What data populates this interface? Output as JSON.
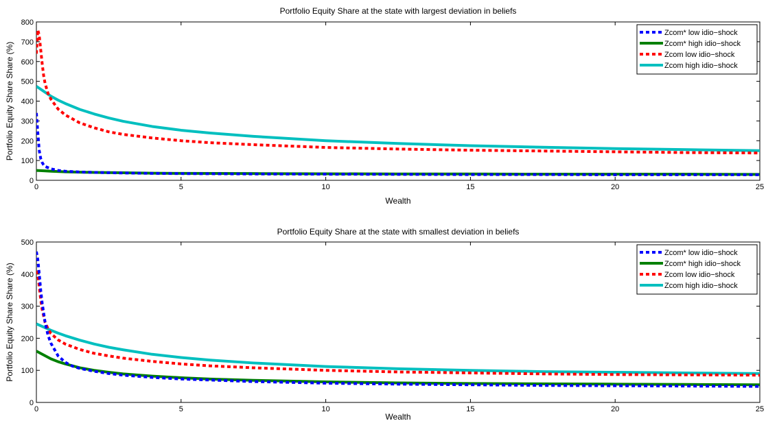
{
  "chart_data": [
    {
      "type": "line",
      "title": "Portfolio Equity Share at the state with largest deviation in beliefs",
      "xlabel": "Wealth",
      "ylabel": "Portfolio Equity Share Share (%)",
      "xlim": [
        0,
        25
      ],
      "ylim": [
        0,
        800
      ],
      "xticks": [
        0,
        5,
        10,
        15,
        20,
        25
      ],
      "yticks": [
        0,
        100,
        200,
        300,
        400,
        500,
        600,
        700,
        800
      ],
      "grid": false,
      "legend_position": "top-right",
      "series": [
        {
          "name": "Zcom* low idio−shock",
          "color": "#0000ff",
          "style": "dotted",
          "x": [
            0.0,
            0.05,
            0.1,
            0.15,
            0.2,
            0.25,
            0.3,
            0.5,
            0.75,
            1,
            1.5,
            2,
            3,
            4,
            5,
            7.5,
            10,
            12.5,
            15,
            17.5,
            20,
            22.5,
            25
          ],
          "y": [
            340,
            240,
            150,
            110,
            90,
            78,
            70,
            58,
            50,
            46,
            42,
            40,
            37,
            35,
            34,
            32,
            31,
            30,
            29,
            29,
            28,
            28,
            28
          ]
        },
        {
          "name": "Zcom* high idio−shock",
          "color": "#008000",
          "style": "solid",
          "x": [
            0.0,
            0.25,
            0.5,
            1,
            1.5,
            2,
            3,
            4,
            5,
            7.5,
            10,
            12.5,
            15,
            17.5,
            20,
            22.5,
            25
          ],
          "y": [
            50,
            48,
            46,
            43,
            41,
            40,
            38,
            36,
            35,
            34,
            33,
            32,
            32,
            31,
            31,
            31,
            30
          ]
        },
        {
          "name": "Zcom low idio−shock",
          "color": "#ff0000",
          "style": "dotted",
          "x": [
            0.0,
            0.05,
            0.1,
            0.15,
            0.2,
            0.25,
            0.3,
            0.4,
            0.5,
            0.75,
            1,
            1.5,
            2,
            2.5,
            3,
            4,
            5,
            6,
            7.5,
            10,
            12.5,
            15,
            17.5,
            20,
            22.5,
            25
          ],
          "y": [
            640,
            760,
            730,
            660,
            590,
            530,
            490,
            440,
            410,
            360,
            330,
            290,
            265,
            245,
            232,
            214,
            200,
            190,
            180,
            166,
            158,
            152,
            148,
            144,
            140,
            138
          ]
        },
        {
          "name": "Zcom high idio−shock",
          "color": "#00bfbf",
          "style": "solid",
          "x": [
            0.0,
            0.25,
            0.5,
            0.75,
            1,
            1.5,
            2,
            2.5,
            3,
            4,
            5,
            6,
            7.5,
            10,
            12.5,
            15,
            17.5,
            20,
            22.5,
            25
          ],
          "y": [
            475,
            450,
            425,
            405,
            388,
            358,
            335,
            315,
            298,
            272,
            253,
            239,
            222,
            200,
            186,
            175,
            167,
            160,
            155,
            150
          ]
        }
      ]
    },
    {
      "type": "line",
      "title": "Portfolio Equity Share at the state with smallest deviation in beliefs",
      "xlabel": "Wealth",
      "ylabel": "Portfolio Equity Share Share (%)",
      "xlim": [
        0,
        25
      ],
      "ylim": [
        0,
        500
      ],
      "xticks": [
        0,
        5,
        10,
        15,
        20,
        25
      ],
      "yticks": [
        0,
        100,
        200,
        300,
        400,
        500
      ],
      "grid": false,
      "legend_position": "top-right",
      "series": [
        {
          "name": "Zcom* low idio−shock",
          "color": "#0000ff",
          "style": "dotted",
          "x": [
            0.0,
            0.05,
            0.1,
            0.15,
            0.2,
            0.3,
            0.4,
            0.5,
            0.75,
            1,
            1.25,
            1.5,
            2,
            2.5,
            3,
            4,
            5,
            7.5,
            10,
            12.5,
            15,
            17.5,
            20,
            22.5,
            25
          ],
          "y": [
            470,
            445,
            400,
            350,
            310,
            250,
            210,
            185,
            145,
            125,
            113,
            106,
            97,
            90,
            85,
            78,
            73,
            65,
            60,
            57,
            55,
            53,
            52,
            51,
            50
          ]
        },
        {
          "name": "Zcom* high idio−shock",
          "color": "#008000",
          "style": "solid",
          "x": [
            0.0,
            0.25,
            0.5,
            0.75,
            1,
            1.5,
            2,
            2.5,
            3,
            4,
            5,
            6,
            7.5,
            10,
            12.5,
            15,
            17.5,
            20,
            22.5,
            25
          ],
          "y": [
            160,
            148,
            136,
            127,
            120,
            108,
            100,
            94,
            89,
            82,
            77,
            73,
            69,
            64,
            61,
            59,
            58,
            57,
            56,
            55
          ]
        },
        {
          "name": "Zcom low idio−shock",
          "color": "#ff0000",
          "style": "dotted",
          "x": [
            0.0,
            0.05,
            0.1,
            0.15,
            0.2,
            0.3,
            0.4,
            0.5,
            0.75,
            1,
            1.5,
            2,
            2.5,
            3,
            4,
            5,
            6,
            7.5,
            10,
            12.5,
            15,
            17.5,
            20,
            22.5,
            25
          ],
          "y": [
            410,
            400,
            360,
            320,
            290,
            250,
            230,
            215,
            195,
            182,
            165,
            153,
            145,
            138,
            128,
            120,
            114,
            108,
            100,
            95,
            92,
            89,
            87,
            86,
            85
          ]
        },
        {
          "name": "Zcom high idio−shock",
          "color": "#00bfbf",
          "style": "solid",
          "x": [
            0.0,
            0.25,
            0.5,
            0.75,
            1,
            1.5,
            2,
            2.5,
            3,
            4,
            5,
            6,
            7.5,
            10,
            12.5,
            15,
            17.5,
            20,
            22.5,
            25
          ],
          "y": [
            245,
            235,
            225,
            216,
            208,
            194,
            182,
            172,
            164,
            150,
            140,
            132,
            123,
            112,
            105,
            100,
            96,
            94,
            92,
            90
          ]
        }
      ]
    }
  ]
}
